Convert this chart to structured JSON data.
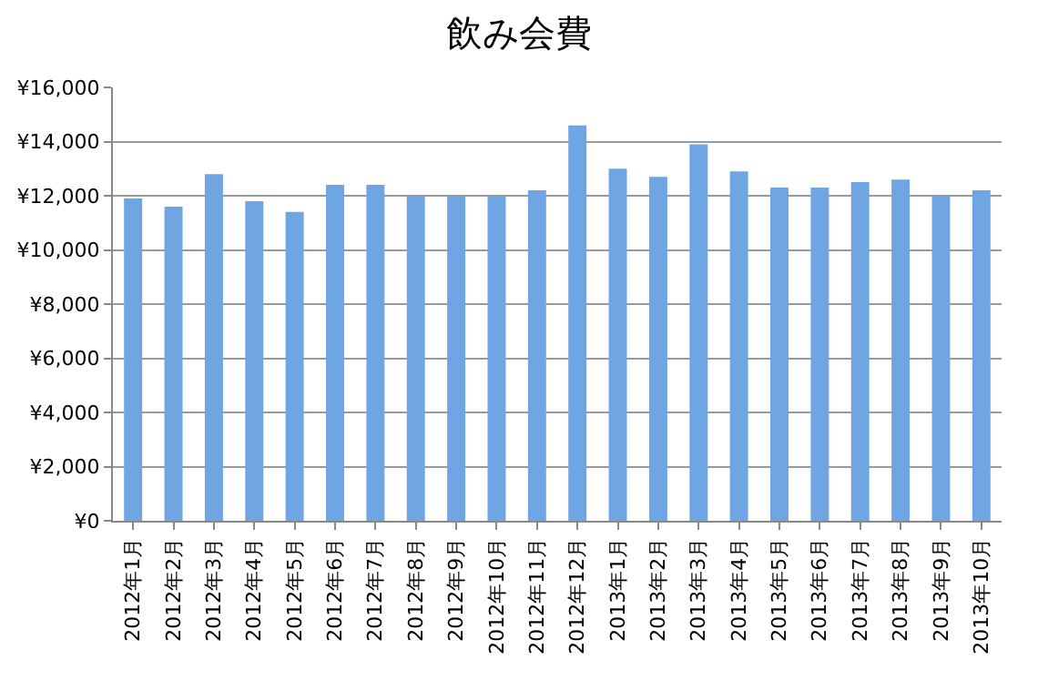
{
  "chart_data": {
    "type": "bar",
    "title": "飲み会費",
    "categories": [
      "2012年1月",
      "2012年2月",
      "2012年3月",
      "2012年4月",
      "2012年5月",
      "2012年6月",
      "2012年7月",
      "2012年8月",
      "2012年9月",
      "2012年10月",
      "2012年11月",
      "2012年12月",
      "2013年1月",
      "2013年2月",
      "2013年3月",
      "2013年4月",
      "2013年5月",
      "2013年6月",
      "2013年7月",
      "2013年8月",
      "2013年9月",
      "2013年10月"
    ],
    "values": [
      11900,
      11600,
      12800,
      11800,
      11400,
      12400,
      12400,
      12000,
      12000,
      12000,
      12200,
      14600,
      13000,
      12700,
      13900,
      12900,
      12300,
      12300,
      12500,
      12600,
      12000,
      12200
    ],
    "color": "#6fa5e3",
    "ylim": [
      0,
      16000
    ],
    "yticks": [
      {
        "value": 0,
        "label": "¥0"
      },
      {
        "value": 2000,
        "label": "¥2,000"
      },
      {
        "value": 4000,
        "label": "¥4,000"
      },
      {
        "value": 6000,
        "label": "¥6,000"
      },
      {
        "value": 8000,
        "label": "¥8,000"
      },
      {
        "value": 10000,
        "label": "¥10,000"
      },
      {
        "value": 12000,
        "label": "¥12,000"
      },
      {
        "value": 14000,
        "label": "¥14,000"
      },
      {
        "value": 16000,
        "label": "¥16,000"
      }
    ],
    "grid": "y"
  }
}
